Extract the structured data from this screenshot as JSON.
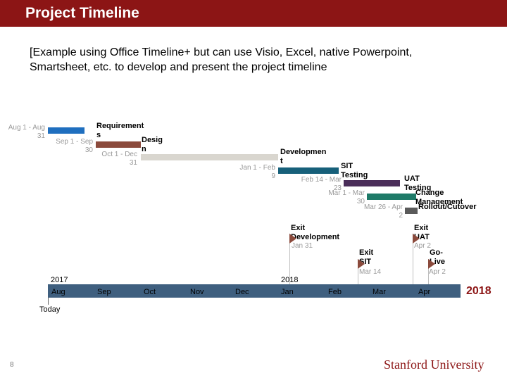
{
  "header": {
    "title": "Project Timeline"
  },
  "subtitle": "[Example using Office Timeline+ but can use Visio, Excel, native Powerpoint, Smartsheet, etc. to develop and present the project timeline",
  "tasks": [
    {
      "name": "",
      "dates": "Aug 1 - Aug 31",
      "color": "#1f6fbf"
    },
    {
      "name": "Requirements",
      "dates": "Sep 1 - Sep 30",
      "color": "#8b4a3c"
    },
    {
      "name": "Design",
      "dates": "Oct 1 - Dec 31",
      "color": "#d9d6cf"
    },
    {
      "name": "Development",
      "dates": "Jan 1 - Feb 9",
      "color": "#17607a"
    },
    {
      "name": "SIT Testing",
      "dates": "Feb 14 - Mar 23",
      "color": "#4b2e5a"
    },
    {
      "name": "UAT Testing",
      "dates": "Mar 1 - Mar 30",
      "color": "#1e7a68"
    },
    {
      "name": "Change Management",
      "dates": "Mar 26 - Apr 2",
      "color": "#5a5a5a"
    },
    {
      "name": "Rollout/Cutover",
      "dates": "",
      "color": "#5a5a5a"
    }
  ],
  "axis": {
    "months": [
      "Aug",
      "Sep",
      "Oct",
      "Nov",
      "Dec",
      "Jan",
      "Feb",
      "Mar",
      "Apr"
    ],
    "year_start": "2017",
    "year_mid": "2018",
    "year_end": "2018",
    "color": "#3f5f7f"
  },
  "milestones": [
    {
      "name": "Exit Development",
      "date": "Jan 31",
      "color": "#8b4a3c"
    },
    {
      "name": "Exit SIT",
      "date": "Mar 14",
      "color": "#8b4a3c"
    },
    {
      "name": "Exit UAT",
      "date": "Apr 2",
      "color": "#8b4a3c"
    },
    {
      "name": "Go-Live",
      "date": "Apr 2",
      "color": "#8b4a3c"
    }
  ],
  "today_label": "Today",
  "footer": {
    "page_number": "8",
    "logo_text": "Stanford University"
  },
  "brand_color": "#8c1515"
}
